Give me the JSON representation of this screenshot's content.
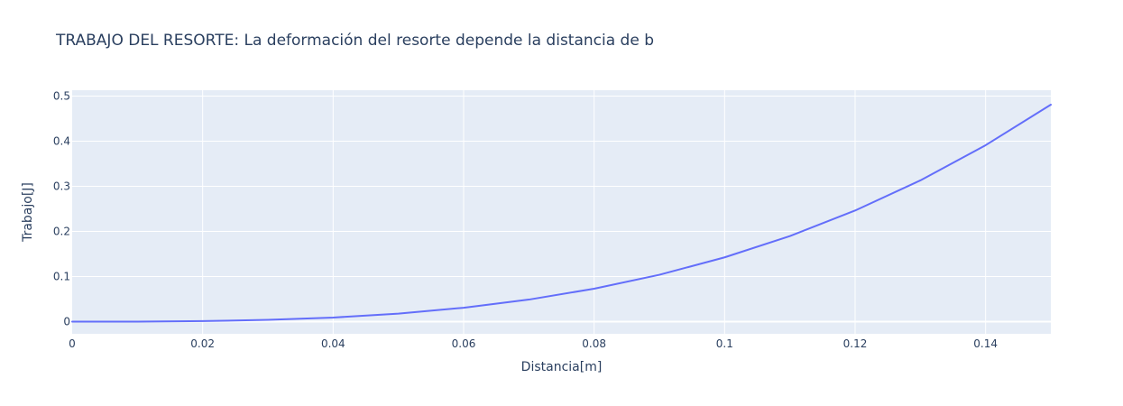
{
  "chart_data": {
    "type": "line",
    "title": "TRABAJO DEL RESORTE: La deformación del resorte depende la distancia de b",
    "xlabel": "Distancia[m]",
    "ylabel": "Trabajo[J]",
    "xlim": [
      0,
      0.15
    ],
    "ylim": [
      -0.027,
      0.513
    ],
    "x_ticks": [
      0,
      0.02,
      0.04,
      0.06,
      0.08,
      0.1,
      0.12,
      0.14
    ],
    "x_tick_labels": [
      "0",
      "0.02",
      "0.04",
      "0.06",
      "0.08",
      "0.1",
      "0.12",
      "0.14"
    ],
    "y_ticks": [
      0,
      0.1,
      0.2,
      0.3,
      0.4,
      0.5
    ],
    "y_tick_labels": [
      "0",
      "0.1",
      "0.2",
      "0.3",
      "0.4",
      "0.5"
    ],
    "grid": true,
    "colors": {
      "plot_background": "#e5ecf6",
      "grid": "#ffffff",
      "line": "#636efa",
      "text": "#2a3f5f"
    },
    "series": [
      {
        "x": [
          0,
          0.01,
          0.02,
          0.03,
          0.04,
          0.05,
          0.06,
          0.07,
          0.08,
          0.09,
          0.1,
          0.11,
          0.12,
          0.13,
          0.14,
          0.15
        ],
        "values": [
          0,
          0.0001,
          0.0012,
          0.0039,
          0.0091,
          0.0178,
          0.0308,
          0.0489,
          0.073,
          0.1039,
          0.1425,
          0.1897,
          0.2463,
          0.3131,
          0.3911,
          0.481
        ]
      }
    ]
  }
}
